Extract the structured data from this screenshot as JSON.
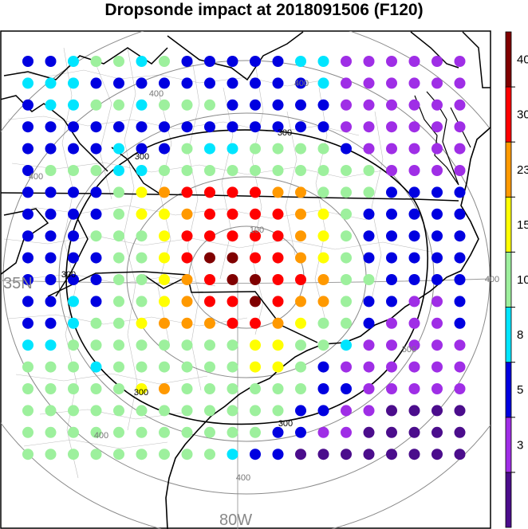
{
  "title": "Dropsonde impact at 2018091506 (F120)",
  "colorbar": {
    "colors": [
      "#4b0d8c",
      "#9f2ee6",
      "#0000e0",
      "#00e5ff",
      "#9df09d",
      "#ffff00",
      "#ff9900",
      "#ff0000",
      "#800000"
    ],
    "tick_labels": [
      "3",
      "5",
      "8",
      "10",
      "15",
      "23",
      "30",
      "40"
    ]
  },
  "contours": [
    "100",
    "300",
    "300",
    "300",
    "300",
    "300",
    "400",
    "400",
    "400",
    "400",
    "400",
    "400",
    "500"
  ],
  "axis_labels": {
    "lat": "35N",
    "lon": "80W"
  },
  "grid": {
    "rows": 19,
    "cols": 20,
    "legend": "0=indigo 1=purple 2=blue 3=cyan 4=lightgreen 5=yellow 6=orange 7=red 8=darkred",
    "categories": [
      "22344342222233111111",
      "33322222222223111111",
      "23344344422222111111",
      "22222222222222111111",
      "22223224334444211111",
      "24443344444444441111",
      "22224567777664442222",
      "22224556777765422222",
      "22244457777765422222",
      "22224457887765422222",
      "22224456788776442222",
      "22324456778766422112",
      "22344566677654421112",
      "33444444445544311111",
      "44434444445542111111",
      "44444564444442211111",
      "44444444444422110000",
      "44444444444221100000",
      "44444444432200000000"
    ]
  }
}
